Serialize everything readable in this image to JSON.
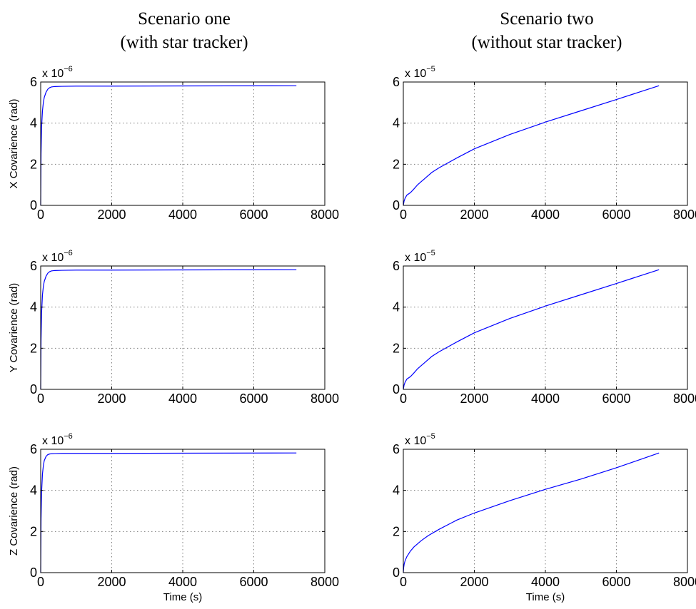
{
  "columns": [
    {
      "title_line1": "Scenario one",
      "title_line2": "(with star tracker)"
    },
    {
      "title_line1": "Scenario two",
      "title_line2": "(without star tracker)"
    }
  ],
  "chart_data": [
    {
      "type": "line",
      "row": 0,
      "col": 0,
      "ylabel": "X Covarience (rad)",
      "xlabel": "",
      "multiplier": "x 10",
      "multiplier_exp": "−6",
      "xlim": [
        0,
        8000
      ],
      "ylim": [
        0,
        6
      ],
      "xticks": [
        "0",
        "2000",
        "4000",
        "6000",
        "8000"
      ],
      "yticks": [
        "0",
        "2",
        "4",
        "6"
      ],
      "grid": true,
      "series": [
        {
          "color": "#0000ff",
          "x": [
            0,
            10,
            25,
            50,
            75,
            100,
            150,
            200,
            250,
            300,
            400,
            600,
            1000,
            2000,
            4000,
            7200
          ],
          "y": [
            0,
            2.5,
            3.8,
            4.6,
            5.0,
            5.25,
            5.5,
            5.65,
            5.72,
            5.76,
            5.78,
            5.79,
            5.8,
            5.8,
            5.81,
            5.82
          ]
        }
      ]
    },
    {
      "type": "line",
      "row": 0,
      "col": 1,
      "ylabel": "",
      "xlabel": "",
      "multiplier": "x 10",
      "multiplier_exp": "−5",
      "xlim": [
        0,
        8000
      ],
      "ylim": [
        0,
        6
      ],
      "xticks": [
        "0",
        "2000",
        "4000",
        "6000",
        "8000"
      ],
      "yticks": [
        "0",
        "2",
        "4",
        "6"
      ],
      "grid": true,
      "series": [
        {
          "color": "#0000ff",
          "x": [
            0,
            20,
            50,
            100,
            200,
            300,
            400,
            600,
            800,
            1000,
            1500,
            2000,
            3000,
            4000,
            5000,
            6000,
            7200
          ],
          "y": [
            0,
            0.2,
            0.35,
            0.5,
            0.62,
            0.8,
            1.0,
            1.3,
            1.6,
            1.82,
            2.3,
            2.75,
            3.45,
            4.05,
            4.6,
            5.15,
            5.82
          ]
        }
      ]
    },
    {
      "type": "line",
      "row": 1,
      "col": 0,
      "ylabel": "Y Covarience (rad)",
      "xlabel": "",
      "multiplier": "x 10",
      "multiplier_exp": "−6",
      "xlim": [
        0,
        8000
      ],
      "ylim": [
        0,
        6
      ],
      "xticks": [
        "0",
        "2000",
        "4000",
        "6000",
        "8000"
      ],
      "yticks": [
        "0",
        "2",
        "4",
        "6"
      ],
      "grid": true,
      "series": [
        {
          "color": "#0000ff",
          "x": [
            0,
            10,
            25,
            50,
            75,
            100,
            150,
            200,
            250,
            300,
            400,
            600,
            1000,
            2000,
            4000,
            7200
          ],
          "y": [
            0,
            2.4,
            3.7,
            4.6,
            5.0,
            5.25,
            5.5,
            5.65,
            5.72,
            5.76,
            5.78,
            5.79,
            5.8,
            5.8,
            5.81,
            5.82
          ]
        }
      ]
    },
    {
      "type": "line",
      "row": 1,
      "col": 1,
      "ylabel": "",
      "xlabel": "",
      "multiplier": "x 10",
      "multiplier_exp": "−5",
      "xlim": [
        0,
        8000
      ],
      "ylim": [
        0,
        6
      ],
      "xticks": [
        "0",
        "2000",
        "4000",
        "6000",
        "8000"
      ],
      "yticks": [
        "0",
        "2",
        "4",
        "6"
      ],
      "grid": true,
      "series": [
        {
          "color": "#0000ff",
          "x": [
            0,
            20,
            50,
            100,
            200,
            300,
            400,
            600,
            800,
            1000,
            1500,
            2000,
            3000,
            4000,
            5000,
            6000,
            7200
          ],
          "y": [
            0,
            0.2,
            0.35,
            0.5,
            0.62,
            0.8,
            1.0,
            1.3,
            1.6,
            1.82,
            2.3,
            2.75,
            3.45,
            4.05,
            4.6,
            5.15,
            5.82
          ]
        }
      ]
    },
    {
      "type": "line",
      "row": 2,
      "col": 0,
      "ylabel": "Z Covarience (rad)",
      "xlabel": "Time (s)",
      "multiplier": "x 10",
      "multiplier_exp": "−6",
      "xlim": [
        0,
        8000
      ],
      "ylim": [
        0,
        6
      ],
      "xticks": [
        "0",
        "2000",
        "4000",
        "6000",
        "8000"
      ],
      "yticks": [
        "0",
        "2",
        "4",
        "6"
      ],
      "grid": true,
      "series": [
        {
          "color": "#0000ff",
          "x": [
            0,
            10,
            25,
            50,
            75,
            100,
            150,
            200,
            250,
            300,
            400,
            600,
            1000,
            2000,
            4000,
            7200
          ],
          "y": [
            0,
            2.6,
            3.9,
            4.8,
            5.2,
            5.45,
            5.65,
            5.74,
            5.77,
            5.78,
            5.79,
            5.8,
            5.8,
            5.8,
            5.81,
            5.82
          ]
        }
      ]
    },
    {
      "type": "line",
      "row": 2,
      "col": 1,
      "ylabel": "",
      "xlabel": "Time (s)",
      "multiplier": "x 10",
      "multiplier_exp": "−5",
      "xlim": [
        0,
        8000
      ],
      "ylim": [
        0,
        6
      ],
      "xticks": [
        "0",
        "2000",
        "4000",
        "6000",
        "8000"
      ],
      "yticks": [
        "0",
        "2",
        "4",
        "6"
      ],
      "grid": true,
      "series": [
        {
          "color": "#0000ff",
          "x": [
            0,
            10,
            25,
            50,
            100,
            200,
            300,
            500,
            700,
            1000,
            1500,
            2000,
            3000,
            4000,
            5000,
            6000,
            7200
          ],
          "y": [
            0,
            0.25,
            0.42,
            0.58,
            0.78,
            1.05,
            1.25,
            1.55,
            1.8,
            2.1,
            2.55,
            2.9,
            3.5,
            4.05,
            4.55,
            5.1,
            5.82
          ]
        }
      ]
    }
  ]
}
